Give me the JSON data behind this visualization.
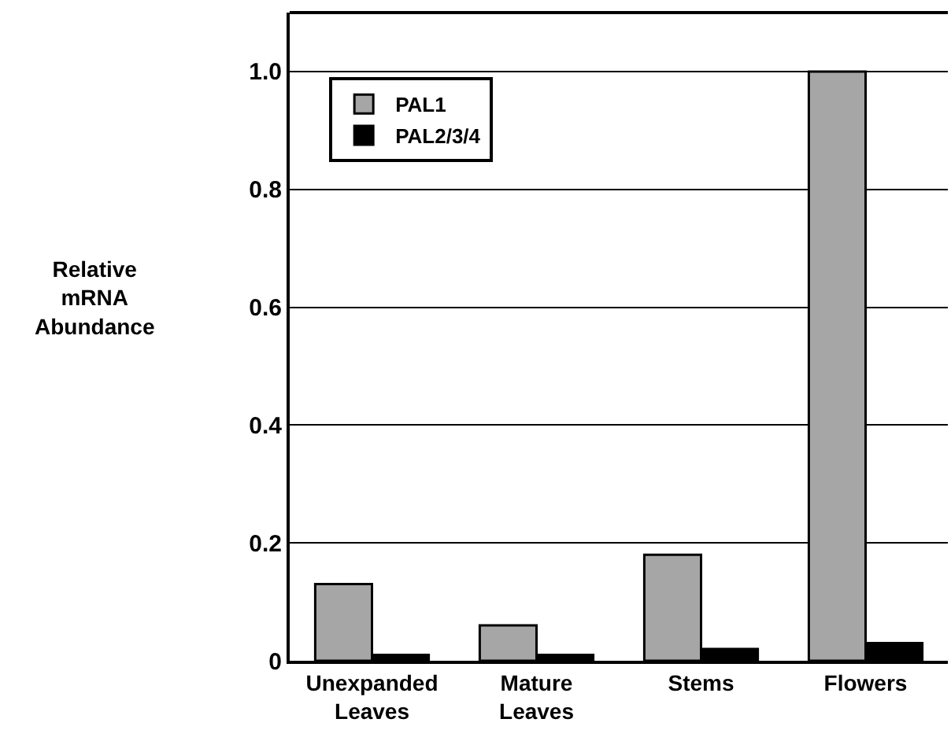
{
  "chart_data": {
    "type": "bar",
    "annotations": [
      "Relative mRNA Abundance"
    ],
    "categories": [
      "Unexpanded Leaves",
      "Mature Leaves",
      "Stems",
      "Flowers"
    ],
    "series": [
      {
        "name": "PAL1",
        "color": "#a6a6a6",
        "values": [
          0.13,
          0.06,
          0.18,
          1.0
        ]
      },
      {
        "name": "PAL2/3/4",
        "color": "#000000",
        "values": [
          0.01,
          0.01,
          0.02,
          0.03
        ]
      }
    ],
    "ylim": [
      0,
      1.1
    ],
    "yticks": [
      0,
      0.2,
      0.4,
      0.6,
      0.8,
      {
        "value": 1.0,
        "label": "1.0"
      }
    ],
    "grid": "y",
    "legend": "top left"
  }
}
